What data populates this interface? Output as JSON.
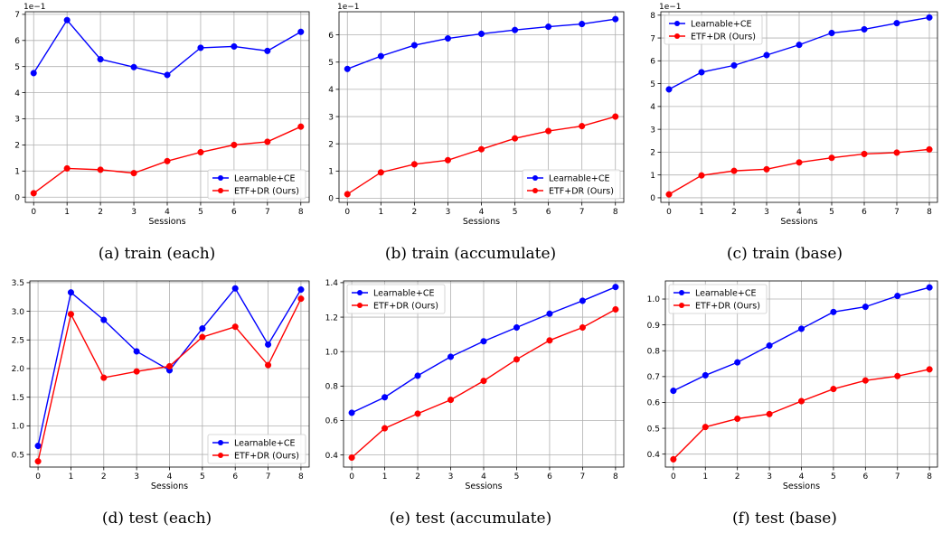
{
  "chart_data": [
    {
      "type": "line",
      "caption": "(a) train (each)",
      "xlabel": "Sessions",
      "ylabel": "",
      "exponent_label": "1e−1",
      "x": [
        0,
        1,
        2,
        3,
        4,
        5,
        6,
        7,
        8
      ],
      "ylim": [
        -0.2,
        7.1
      ],
      "yticks": [
        0,
        1,
        2,
        3,
        4,
        5,
        6,
        7
      ],
      "ytick_labels": [
        "0",
        "1",
        "2",
        "3",
        "4",
        "5",
        "6",
        "7"
      ],
      "grid": true,
      "legend_position": "bottom-right",
      "series": [
        {
          "name": "Learnable+CE",
          "color": "#0000ff",
          "values": [
            4.75,
            6.78,
            5.28,
            4.98,
            4.68,
            5.72,
            5.77,
            5.6,
            6.33
          ]
        },
        {
          "name": "ETF+DR (Ours)",
          "color": "#ff0000",
          "values": [
            0.15,
            1.1,
            1.05,
            0.92,
            1.38,
            1.72,
            2.0,
            2.12,
            2.7
          ]
        }
      ]
    },
    {
      "type": "line",
      "caption": "(b) train (accumulate)",
      "xlabel": "Sessions",
      "ylabel": "",
      "exponent_label": "1e−1",
      "x": [
        0,
        1,
        2,
        3,
        4,
        5,
        6,
        7,
        8
      ],
      "ylim": [
        -0.15,
        6.85
      ],
      "yticks": [
        0,
        1,
        2,
        3,
        4,
        5,
        6
      ],
      "ytick_labels": [
        "0",
        "1",
        "2",
        "3",
        "4",
        "5",
        "6"
      ],
      "grid": true,
      "legend_position": "bottom-right",
      "series": [
        {
          "name": "Learnable+CE",
          "color": "#0000ff",
          "values": [
            4.75,
            5.22,
            5.62,
            5.87,
            6.04,
            6.18,
            6.3,
            6.4,
            6.58
          ]
        },
        {
          "name": "ETF+DR (Ours)",
          "color": "#ff0000",
          "values": [
            0.15,
            0.95,
            1.25,
            1.4,
            1.8,
            2.2,
            2.47,
            2.65,
            3.0
          ]
        }
      ]
    },
    {
      "type": "line",
      "caption": "(c) train (base)",
      "xlabel": "Sessions",
      "ylabel": "",
      "exponent_label": "1e−1",
      "x": [
        0,
        1,
        2,
        3,
        4,
        5,
        6,
        7,
        8
      ],
      "ylim": [
        -0.2,
        8.15
      ],
      "yticks": [
        0,
        1,
        2,
        3,
        4,
        5,
        6,
        7,
        8
      ],
      "ytick_labels": [
        "0",
        "1",
        "2",
        "3",
        "4",
        "5",
        "6",
        "7",
        "8"
      ],
      "grid": true,
      "legend_position": "top-left",
      "series": [
        {
          "name": "Learnable+CE",
          "color": "#0000ff",
          "values": [
            4.75,
            5.5,
            5.8,
            6.25,
            6.7,
            7.22,
            7.38,
            7.65,
            7.9
          ]
        },
        {
          "name": "ETF+DR (Ours)",
          "color": "#ff0000",
          "values": [
            0.15,
            0.98,
            1.18,
            1.25,
            1.55,
            1.75,
            1.92,
            1.98,
            2.12
          ]
        }
      ]
    },
    {
      "type": "line",
      "caption": "(d) test (each)",
      "xlabel": "Sessions",
      "ylabel": "",
      "exponent_label": "",
      "x": [
        0,
        1,
        2,
        3,
        4,
        5,
        6,
        7,
        8
      ],
      "ylim": [
        0.28,
        3.53
      ],
      "yticks": [
        0.5,
        1.0,
        1.5,
        2.0,
        2.5,
        3.0,
        3.5
      ],
      "ytick_labels": [
        "0.5",
        "1.0",
        "1.5",
        "2.0",
        "2.5",
        "3.0",
        "3.5"
      ],
      "grid": true,
      "legend_position": "bottom-right",
      "series": [
        {
          "name": "Learnable+CE",
          "color": "#0000ff",
          "values": [
            0.65,
            3.33,
            2.85,
            2.3,
            1.97,
            2.7,
            3.4,
            2.42,
            3.38
          ]
        },
        {
          "name": "ETF+DR (Ours)",
          "color": "#ff0000",
          "values": [
            0.38,
            2.95,
            1.84,
            1.95,
            2.04,
            2.55,
            2.73,
            2.06,
            3.22
          ]
        }
      ]
    },
    {
      "type": "line",
      "caption": "(e) test (accumulate)",
      "xlabel": "Sessions",
      "ylabel": "",
      "exponent_label": "",
      "x": [
        0,
        1,
        2,
        3,
        4,
        5,
        6,
        7,
        8
      ],
      "ylim": [
        0.33,
        1.41
      ],
      "yticks": [
        0.4,
        0.6,
        0.8,
        1.0,
        1.2,
        1.4
      ],
      "ytick_labels": [
        "0.4",
        "0.6",
        "0.8",
        "1.0",
        "1.2",
        "1.4"
      ],
      "grid": true,
      "legend_position": "top-left",
      "series": [
        {
          "name": "Learnable+CE",
          "color": "#0000ff",
          "values": [
            0.645,
            0.735,
            0.86,
            0.97,
            1.06,
            1.14,
            1.22,
            1.295,
            1.375
          ]
        },
        {
          "name": "ETF+DR (Ours)",
          "color": "#ff0000",
          "values": [
            0.385,
            0.555,
            0.64,
            0.72,
            0.83,
            0.955,
            1.065,
            1.14,
            1.245
          ]
        }
      ]
    },
    {
      "type": "line",
      "caption": "(f) test (base)",
      "xlabel": "Sessions",
      "ylabel": "",
      "exponent_label": "",
      "x": [
        0,
        1,
        2,
        3,
        4,
        5,
        6,
        7,
        8
      ],
      "ylim": [
        0.35,
        1.07
      ],
      "yticks": [
        0.4,
        0.5,
        0.6,
        0.7,
        0.8,
        0.9,
        1.0
      ],
      "ytick_labels": [
        "0.4",
        "0.5",
        "0.6",
        "0.7",
        "0.8",
        "0.9",
        "1.0"
      ],
      "grid": true,
      "legend_position": "top-left",
      "series": [
        {
          "name": "Learnable+CE",
          "color": "#0000ff",
          "values": [
            0.645,
            0.705,
            0.755,
            0.82,
            0.885,
            0.95,
            0.97,
            1.012,
            1.045
          ]
        },
        {
          "name": "ETF+DR (Ours)",
          "color": "#ff0000",
          "values": [
            0.38,
            0.505,
            0.537,
            0.555,
            0.605,
            0.652,
            0.685,
            0.702,
            0.728
          ]
        }
      ]
    }
  ]
}
